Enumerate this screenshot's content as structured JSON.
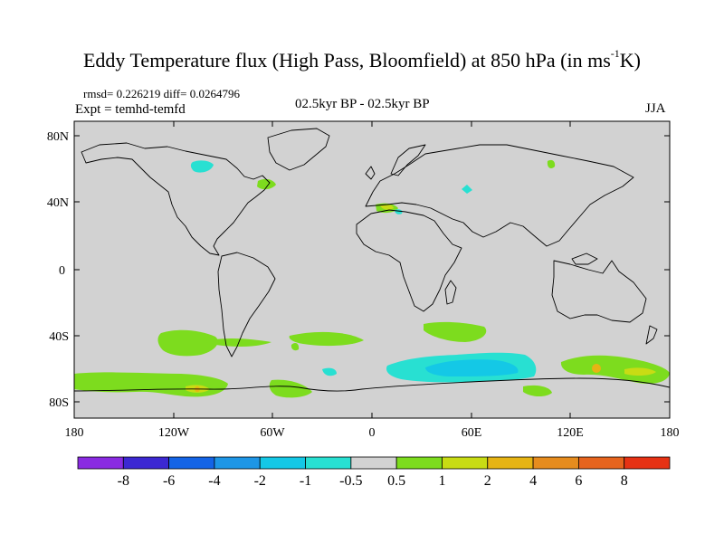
{
  "title_main": "Eddy Temperature flux (High Pass, Bloomfield) at 850 hPa (in ms",
  "title_sup": "-1",
  "title_end": "K)",
  "stats": "rmsd= 0.226219 diff= 0.0264796",
  "experiment": "Expt = temhd-temfd",
  "period": "02.5kyr BP - 02.5kyr BP",
  "season": "JJA",
  "map": {
    "lon_range": [
      -180,
      180
    ],
    "lat_range": [
      -90,
      90
    ],
    "lat_ticks": [
      {
        "value": 80,
        "label": "80N"
      },
      {
        "value": 40,
        "label": "40N"
      },
      {
        "value": 0,
        "label": "0"
      },
      {
        "value": -40,
        "label": "40S"
      },
      {
        "value": -80,
        "label": "80S"
      }
    ],
    "lon_ticks": [
      {
        "value": -180,
        "label": "180"
      },
      {
        "value": -120,
        "label": "120W"
      },
      {
        "value": -60,
        "label": "60W"
      },
      {
        "value": 0,
        "label": "0"
      },
      {
        "value": 60,
        "label": "60E"
      },
      {
        "value": 120,
        "label": "120E"
      },
      {
        "value": 180,
        "label": "180"
      }
    ]
  },
  "colorbar": {
    "labels": [
      "-8",
      "-6",
      "-4",
      "-2",
      "-1",
      "-0.5",
      "0.5",
      "1",
      "2",
      "4",
      "6",
      "8"
    ],
    "colors": [
      "#8a2be2",
      "#3c28d2",
      "#1464e6",
      "#1e96e6",
      "#14c8e6",
      "#28e0d2",
      "#d2d2d2",
      "#7ddc1e",
      "#c8dc14",
      "#e6b414",
      "#e68c1e",
      "#e6641e",
      "#e63214"
    ]
  },
  "colors": {
    "background": "#d2d2d2",
    "positive_weak": "#7ddc1e",
    "positive_mid": "#c8dc14",
    "positive_strong": "#e6b414",
    "negative_weak": "#28e0d2",
    "negative_mid": "#14c8e6"
  }
}
